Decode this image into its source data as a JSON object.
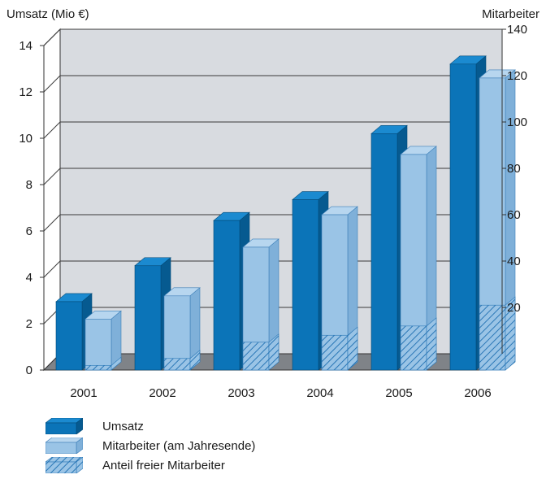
{
  "colors": {
    "umsatz": "#0b74b8",
    "umsatz_side": "#065a90",
    "umsatz_top": "#1b8ad0",
    "mitarbeiter": "#9ac4e6",
    "mitarbeiter_side": "#7fb0d9",
    "mitarbeiter_top": "#b7d6ef",
    "plot_bg": "#d8dbe0",
    "floor": "#7f8388",
    "grid": "#3a3a3a"
  },
  "chart_data": {
    "type": "bar",
    "categories": [
      "2001",
      "2002",
      "2003",
      "2004",
      "2005",
      "2006"
    ],
    "series": [
      {
        "name": "Umsatz",
        "axis": "left",
        "values": [
          2.95,
          4.5,
          6.45,
          7.35,
          10.2,
          13.2
        ]
      },
      {
        "name": "Mitarbeiter (am Jahresende)",
        "axis": "right",
        "values": [
          22,
          32,
          53,
          67,
          93,
          126
        ]
      },
      {
        "name": "Anteil freier Mitarbeiter",
        "axis": "right",
        "stacked_within": "Mitarbeiter (am Jahresende)",
        "values": [
          2,
          5,
          12,
          15,
          19,
          28
        ]
      }
    ],
    "left_axis": {
      "label": "Umsatz (Mio €)",
      "ticks": [
        0,
        2,
        4,
        6,
        8,
        10,
        12,
        14
      ],
      "range": [
        0,
        14
      ]
    },
    "right_axis": {
      "label": "Mitarbeiter",
      "ticks": [
        20,
        40,
        60,
        80,
        100,
        120,
        140
      ],
      "range": [
        0,
        140
      ]
    },
    "grid": true,
    "legend_position": "bottom-left",
    "style": "3d"
  },
  "legend": [
    {
      "label": "Umsatz",
      "swatch": "umsatz"
    },
    {
      "label": "Mitarbeiter (am Jahresende)",
      "swatch": "mitarbeiter"
    },
    {
      "label": "Anteil freier Mitarbeiter",
      "swatch": "hatched"
    }
  ]
}
